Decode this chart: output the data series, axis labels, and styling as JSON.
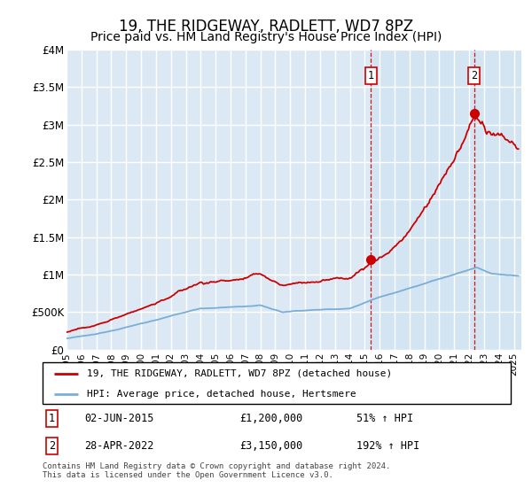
{
  "title": "19, THE RIDGEWAY, RADLETT, WD7 8PZ",
  "subtitle": "Price paid vs. HM Land Registry's House Price Index (HPI)",
  "title_fontsize": 12,
  "subtitle_fontsize": 10,
  "ylim": [
    0,
    4000000
  ],
  "yticks": [
    0,
    500000,
    1000000,
    1500000,
    2000000,
    2500000,
    3000000,
    3500000,
    4000000
  ],
  "ytick_labels": [
    "£0",
    "£500K",
    "£1M",
    "£1.5M",
    "£2M",
    "£2.5M",
    "£3M",
    "£3.5M",
    "£4M"
  ],
  "background_color": "#dce9f5",
  "grid_color": "#ffffff",
  "red_line_color": "#cc0000",
  "blue_line_color": "#7aaed6",
  "sale1_date": "02-JUN-2015",
  "sale1_price": 1200000,
  "sale1_hpi_pct": "51%",
  "sale1_year": 2015.42,
  "sale2_date": "28-APR-2022",
  "sale2_price": 3150000,
  "sale2_hpi_pct": "192%",
  "sale2_year": 2022.33,
  "legend_line1": "19, THE RIDGEWAY, RADLETT, WD7 8PZ (detached house)",
  "legend_line2": "HPI: Average price, detached house, Hertsmere",
  "footnote": "Contains HM Land Registry data © Crown copyright and database right 2024.\nThis data is licensed under the Open Government Licence v3.0.",
  "xmin": 1995.0,
  "xmax": 2025.5,
  "highlight_start": 2015.42,
  "highlight_end": 2025.5
}
